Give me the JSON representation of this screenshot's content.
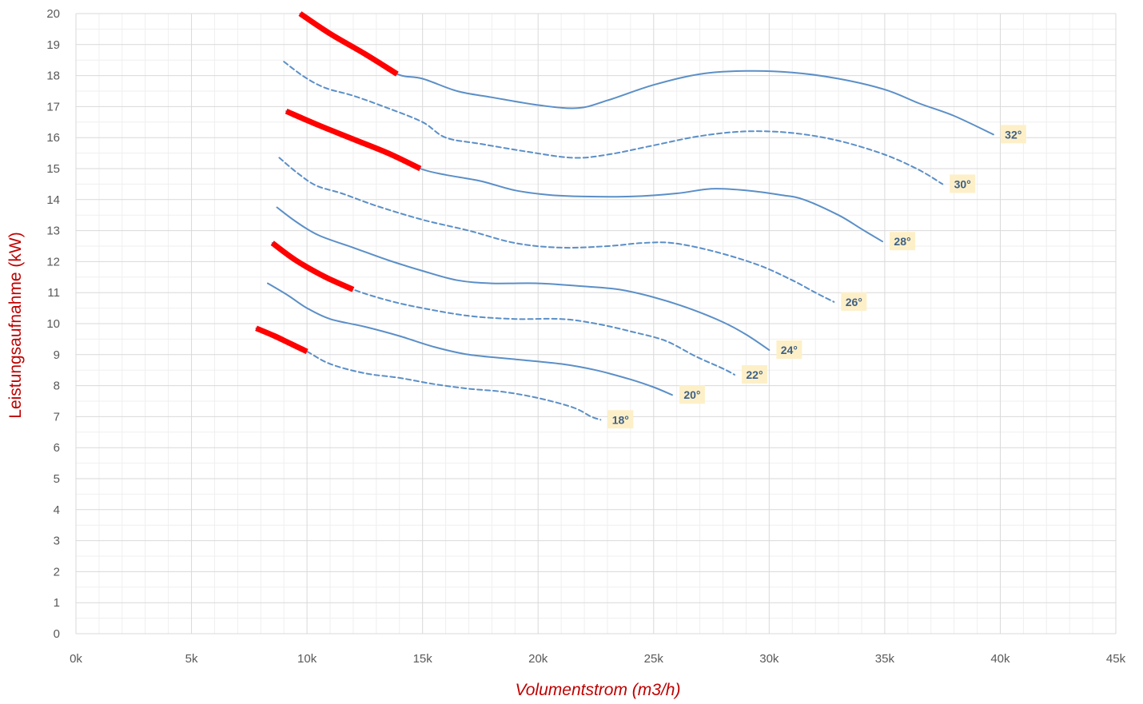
{
  "chart_data": {
    "type": "line",
    "title": "",
    "xlabel": "Volumentstrom (m3/h)",
    "ylabel": "Leistungsaufnahme (kW)",
    "xlim": [
      0,
      45000
    ],
    "ylim": [
      0,
      20
    ],
    "x_ticks": [
      0,
      5000,
      10000,
      15000,
      20000,
      25000,
      30000,
      35000,
      40000,
      45000
    ],
    "x_tick_labels": [
      "0k",
      "5k",
      "10k",
      "15k",
      "20k",
      "25k",
      "30k",
      "35k",
      "40k",
      "45k"
    ],
    "y_ticks": [
      0,
      1,
      2,
      3,
      4,
      5,
      6,
      7,
      8,
      9,
      10,
      11,
      12,
      13,
      14,
      15,
      16,
      17,
      18,
      19,
      20
    ],
    "y_tick_labels": [
      "0",
      "1",
      "2",
      "3",
      "4",
      "5",
      "6",
      "7",
      "8",
      "9",
      "10",
      "11",
      "12",
      "13",
      "14",
      "15",
      "16",
      "17",
      "18",
      "19",
      "20"
    ],
    "grid": true,
    "legend": "none",
    "colors": {
      "series_line": "#5b8fc7",
      "highlight": "#ff0000",
      "label_bg": "#fdf0c8",
      "label_text": "#3e5f86",
      "axis_title": "#c00000",
      "grid_major": "#d9d9d9",
      "grid_minor": "#efefef"
    },
    "series": [
      {
        "name": "32°",
        "dashed": false,
        "points": [
          [
            9700,
            20.0
          ],
          [
            11000,
            19.35
          ],
          [
            12500,
            18.7
          ],
          [
            13900,
            18.05
          ],
          [
            15000,
            17.9
          ],
          [
            16500,
            17.5
          ],
          [
            18000,
            17.3
          ],
          [
            20000,
            17.05
          ],
          [
            21700,
            16.95
          ],
          [
            23000,
            17.2
          ],
          [
            25000,
            17.7
          ],
          [
            27000,
            18.05
          ],
          [
            29000,
            18.15
          ],
          [
            31000,
            18.1
          ],
          [
            33000,
            17.9
          ],
          [
            35000,
            17.55
          ],
          [
            36500,
            17.1
          ],
          [
            38000,
            16.7
          ],
          [
            39700,
            16.1
          ]
        ],
        "highlight": [
          [
            9700,
            20.0
          ],
          [
            11000,
            19.35
          ],
          [
            12500,
            18.7
          ],
          [
            13900,
            18.05
          ]
        ]
      },
      {
        "name": "30°",
        "dashed": true,
        "points": [
          [
            9000,
            18.45
          ],
          [
            9900,
            17.95
          ],
          [
            10800,
            17.6
          ],
          [
            12000,
            17.35
          ],
          [
            13500,
            16.95
          ],
          [
            15000,
            16.5
          ],
          [
            16000,
            16.0
          ],
          [
            17500,
            15.8
          ],
          [
            19500,
            15.55
          ],
          [
            21500,
            15.35
          ],
          [
            23000,
            15.45
          ],
          [
            25000,
            15.75
          ],
          [
            27000,
            16.05
          ],
          [
            29000,
            16.2
          ],
          [
            31000,
            16.15
          ],
          [
            33000,
            15.9
          ],
          [
            35000,
            15.45
          ],
          [
            36500,
            14.95
          ],
          [
            37500,
            14.5
          ]
        ],
        "highlight": []
      },
      {
        "name": "28°",
        "dashed": false,
        "points": [
          [
            9100,
            16.85
          ],
          [
            10500,
            16.4
          ],
          [
            12000,
            15.95
          ],
          [
            13500,
            15.5
          ],
          [
            14900,
            15.0
          ],
          [
            16000,
            14.8
          ],
          [
            17500,
            14.6
          ],
          [
            19000,
            14.3
          ],
          [
            20500,
            14.15
          ],
          [
            22000,
            14.1
          ],
          [
            24000,
            14.1
          ],
          [
            26000,
            14.2
          ],
          [
            27500,
            14.35
          ],
          [
            29000,
            14.3
          ],
          [
            30500,
            14.15
          ],
          [
            31500,
            14.0
          ],
          [
            33000,
            13.5
          ],
          [
            34000,
            13.05
          ],
          [
            34900,
            12.65
          ]
        ],
        "highlight": [
          [
            9100,
            16.85
          ],
          [
            10500,
            16.4
          ],
          [
            12000,
            15.95
          ],
          [
            13500,
            15.5
          ],
          [
            14900,
            15.0
          ]
        ]
      },
      {
        "name": "26°",
        "dashed": true,
        "points": [
          [
            8800,
            15.35
          ],
          [
            9600,
            14.85
          ],
          [
            10400,
            14.45
          ],
          [
            11500,
            14.2
          ],
          [
            13000,
            13.8
          ],
          [
            15000,
            13.35
          ],
          [
            17000,
            13.0
          ],
          [
            19000,
            12.6
          ],
          [
            21000,
            12.45
          ],
          [
            23000,
            12.5
          ],
          [
            24500,
            12.6
          ],
          [
            25800,
            12.6
          ],
          [
            27500,
            12.35
          ],
          [
            29500,
            11.9
          ],
          [
            31000,
            11.4
          ],
          [
            32000,
            11.0
          ],
          [
            32800,
            10.7
          ]
        ],
        "highlight": []
      },
      {
        "name": "24°",
        "dashed": false,
        "points": [
          [
            8700,
            13.75
          ],
          [
            9500,
            13.3
          ],
          [
            10500,
            12.85
          ],
          [
            12000,
            12.45
          ],
          [
            13500,
            12.05
          ],
          [
            15000,
            11.7
          ],
          [
            16500,
            11.4
          ],
          [
            18000,
            11.3
          ],
          [
            20000,
            11.3
          ],
          [
            22000,
            11.2
          ],
          [
            23500,
            11.1
          ],
          [
            25000,
            10.85
          ],
          [
            26500,
            10.5
          ],
          [
            28000,
            10.05
          ],
          [
            29000,
            9.65
          ],
          [
            30000,
            9.15
          ]
        ],
        "highlight": []
      },
      {
        "name": "22°",
        "dashed": true,
        "points": [
          [
            8500,
            12.6
          ],
          [
            9500,
            12.05
          ],
          [
            10800,
            11.5
          ],
          [
            12000,
            11.1
          ],
          [
            13500,
            10.75
          ],
          [
            15000,
            10.5
          ],
          [
            17000,
            10.25
          ],
          [
            19000,
            10.15
          ],
          [
            21000,
            10.15
          ],
          [
            22500,
            10.0
          ],
          [
            24000,
            9.75
          ],
          [
            25500,
            9.45
          ],
          [
            26800,
            8.95
          ],
          [
            28000,
            8.55
          ],
          [
            28500,
            8.35
          ]
        ],
        "highlight": [
          [
            8500,
            12.6
          ],
          [
            9500,
            12.05
          ],
          [
            10800,
            11.5
          ],
          [
            12000,
            11.1
          ]
        ]
      },
      {
        "name": "20°",
        "dashed": false,
        "points": [
          [
            8300,
            11.3
          ],
          [
            9200,
            10.9
          ],
          [
            10000,
            10.5
          ],
          [
            11000,
            10.15
          ],
          [
            12500,
            9.9
          ],
          [
            14000,
            9.6
          ],
          [
            15500,
            9.25
          ],
          [
            17000,
            9.0
          ],
          [
            19000,
            8.85
          ],
          [
            21000,
            8.7
          ],
          [
            22500,
            8.5
          ],
          [
            24000,
            8.2
          ],
          [
            25000,
            7.95
          ],
          [
            25800,
            7.7
          ]
        ],
        "highlight": []
      },
      {
        "name": "18°",
        "dashed": true,
        "points": [
          [
            7800,
            9.85
          ],
          [
            8600,
            9.6
          ],
          [
            9300,
            9.35
          ],
          [
            10000,
            9.1
          ],
          [
            11000,
            8.7
          ],
          [
            12500,
            8.4
          ],
          [
            14000,
            8.25
          ],
          [
            15500,
            8.05
          ],
          [
            17000,
            7.9
          ],
          [
            18500,
            7.8
          ],
          [
            20000,
            7.6
          ],
          [
            21500,
            7.3
          ],
          [
            22300,
            7.0
          ],
          [
            22700,
            6.9
          ]
        ],
        "highlight": [
          [
            7800,
            9.85
          ],
          [
            8600,
            9.6
          ],
          [
            9300,
            9.35
          ],
          [
            10000,
            9.1
          ]
        ]
      }
    ],
    "annotations": [
      "32°",
      "30°",
      "28°",
      "26°",
      "24°",
      "22°",
      "20°",
      "18°"
    ]
  }
}
